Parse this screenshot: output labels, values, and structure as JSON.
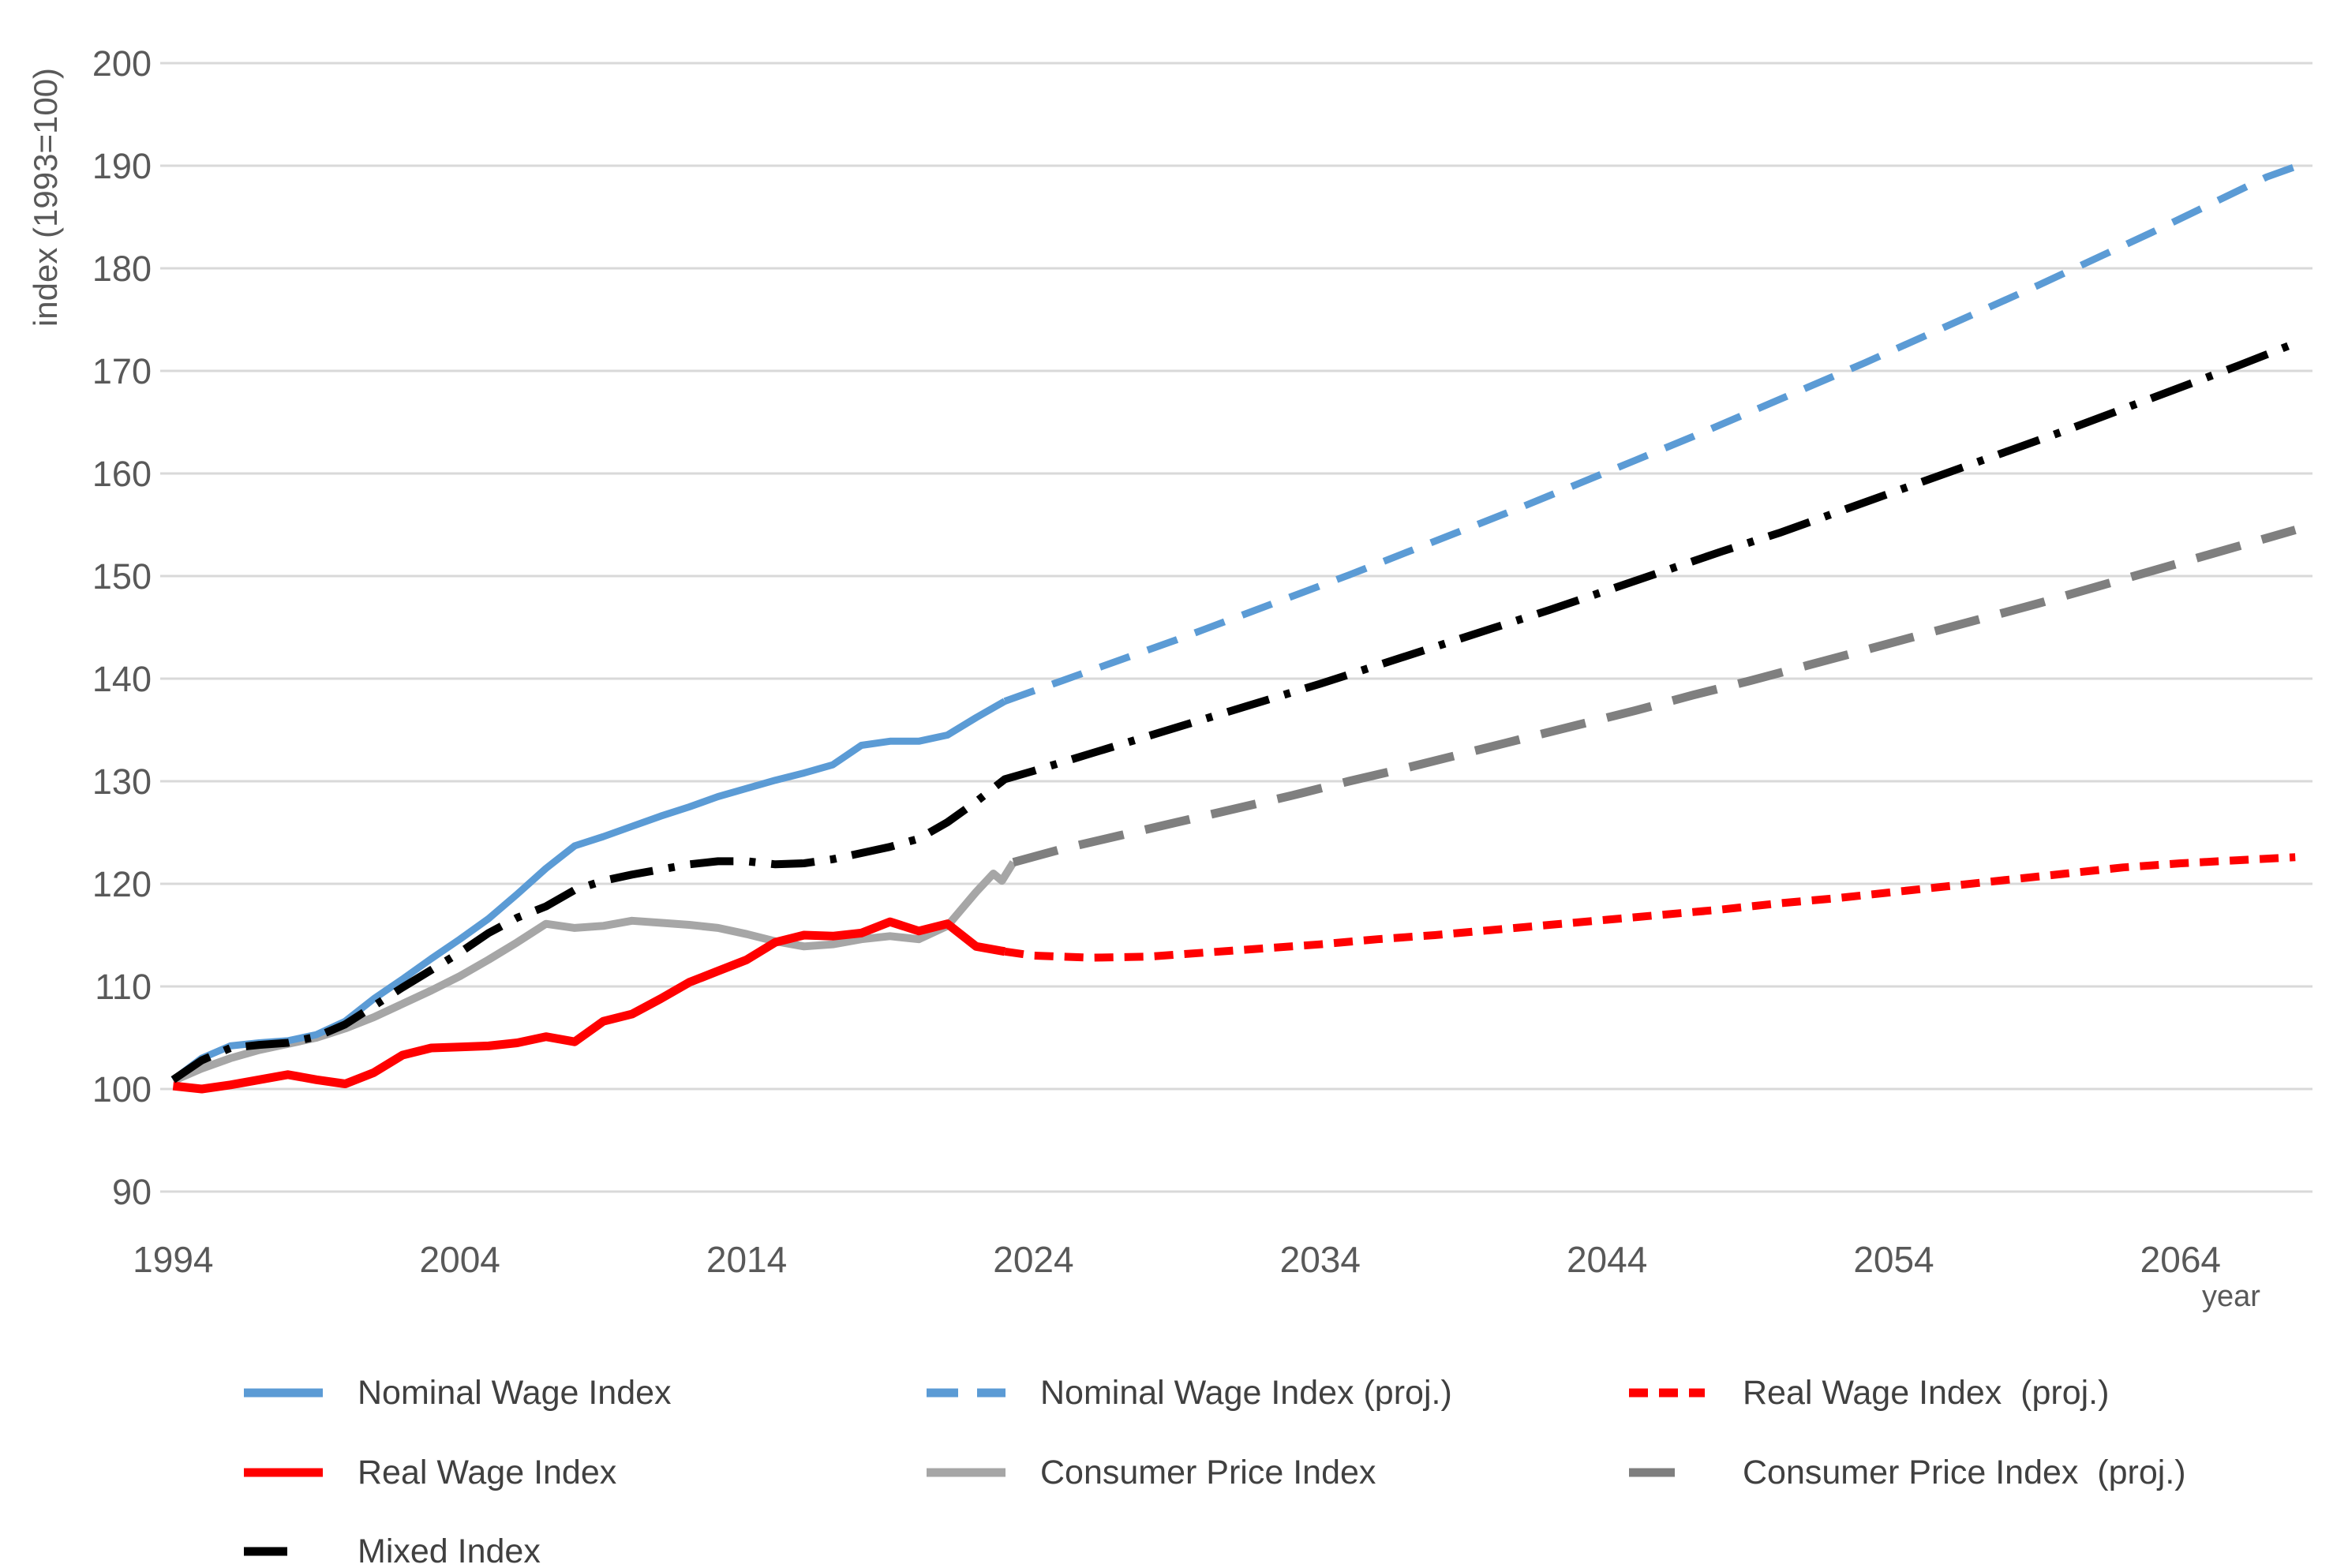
{
  "chart_data": {
    "type": "line",
    "title": "",
    "xlabel": "year",
    "ylabel": "index (1993=100)",
    "xlim": [
      1993.55,
      2068.6
    ],
    "ylim": [
      90,
      200
    ],
    "grid": "horizontal",
    "gridline_color": "#D9D9D9",
    "tick_color": "#595959",
    "legend_position": "bottom",
    "yticks": [
      90,
      100,
      110,
      120,
      130,
      140,
      150,
      160,
      170,
      180,
      190,
      200
    ],
    "xticks": [
      1994,
      2004,
      2014,
      2024,
      2034,
      2044,
      2054,
      2064
    ],
    "series": [
      {
        "name": "Nominal Wage Index",
        "color": "#5B9BD5",
        "dash": "solid",
        "width": 9,
        "x": [
          1994,
          1995,
          1996,
          1997,
          1998,
          1999,
          2000,
          2001,
          2002,
          2003,
          2004,
          2005,
          2006,
          2007,
          2008,
          2009,
          2010,
          2011,
          2012,
          2013,
          2014,
          2015,
          2016,
          2017,
          2018,
          2019,
          2020,
          2021,
          2022,
          2023
        ],
        "y": [
          100.9,
          103.0,
          104.2,
          104.5,
          104.7,
          105.3,
          106.6,
          108.8,
          110.7,
          112.7,
          114.6,
          116.6,
          119.0,
          121.5,
          123.7,
          124.6,
          125.6,
          126.6,
          127.5,
          128.5,
          129.3,
          130.1,
          130.8,
          131.6,
          133.5,
          133.9,
          133.9,
          134.5,
          136.2,
          137.8
        ]
      },
      {
        "name": "Nominal Wage Index (proj.)",
        "color": "#5B9BD5",
        "dash": "dash",
        "width": 9,
        "x": [
          2023,
          2025,
          2027,
          2029,
          2031,
          2033,
          2035,
          2037,
          2039,
          2041,
          2043,
          2045,
          2047,
          2049,
          2051,
          2053,
          2055,
          2057,
          2059,
          2061,
          2063,
          2065,
          2067,
          2068
        ],
        "y": [
          137.8,
          139.8,
          141.8,
          143.8,
          145.9,
          148.0,
          150.1,
          152.3,
          154.5,
          156.7,
          159.0,
          161.3,
          163.6,
          166.0,
          168.4,
          170.8,
          173.3,
          175.8,
          178.3,
          180.9,
          183.5,
          186.2,
          188.9,
          189.9
        ]
      },
      {
        "name": "Real Wage Index  (proj.)",
        "color": "#FF0000",
        "dash": "shortdash",
        "width": 10,
        "x": [
          2023,
          2024,
          2025,
          2026,
          2028,
          2030,
          2032,
          2034,
          2036,
          2038,
          2040,
          2042,
          2044,
          2046,
          2048,
          2050,
          2052,
          2054,
          2056,
          2058,
          2060,
          2062,
          2064,
          2066,
          2068
        ],
        "y": [
          113.4,
          113.0,
          112.9,
          112.8,
          112.9,
          113.3,
          113.7,
          114.1,
          114.6,
          115.0,
          115.5,
          116.0,
          116.5,
          117.0,
          117.5,
          118.1,
          118.6,
          119.2,
          119.8,
          120.4,
          121.0,
          121.6,
          122.0,
          122.3,
          122.6
        ]
      },
      {
        "name": "Real Wage Index",
        "color": "#FF0000",
        "dash": "solid",
        "width": 11,
        "x": [
          1994,
          1995,
          1996,
          1997,
          1998,
          1999,
          2000,
          2001,
          2002,
          2003,
          2004,
          2005,
          2006,
          2007,
          2008,
          2009,
          2010,
          2011,
          2012,
          2013,
          2014,
          2015,
          2016,
          2017,
          2018,
          2019,
          2020,
          2021,
          2022,
          2023
        ],
        "y": [
          100.3,
          100.0,
          100.4,
          100.9,
          101.4,
          100.9,
          100.5,
          101.6,
          103.3,
          104.0,
          104.1,
          104.2,
          104.5,
          105.1,
          104.6,
          106.6,
          107.3,
          108.8,
          110.4,
          111.5,
          112.6,
          114.3,
          115.0,
          114.9,
          115.2,
          116.3,
          115.4,
          116.1,
          113.9,
          113.4
        ]
      },
      {
        "name": "Consumer Price Index",
        "color": "#A6A6A6",
        "dash": "solid",
        "width": 10,
        "x": [
          1994,
          1995,
          1996,
          1997,
          1998,
          1999,
          2000,
          2001,
          2002,
          2003,
          2004,
          2005,
          2006,
          2007,
          2008,
          2009,
          2010,
          2011,
          2012,
          2013,
          2014,
          2015,
          2016,
          2017,
          2018,
          2019,
          2020,
          2021,
          2022,
          2022.6,
          2022.9,
          2023.3
        ],
        "y": [
          100.8,
          102.0,
          103.0,
          103.8,
          104.4,
          105.0,
          105.9,
          107.0,
          108.3,
          109.6,
          111.0,
          112.6,
          114.3,
          116.1,
          115.7,
          115.9,
          116.4,
          116.2,
          116.0,
          115.7,
          115.1,
          114.4,
          113.9,
          114.1,
          114.6,
          114.9,
          114.6,
          115.9,
          119.2,
          121.0,
          120.3,
          122.1
        ]
      },
      {
        "name": "Consumer Price Index  (proj.)",
        "color": "#7F7F7F",
        "dash": "longdash",
        "width": 11,
        "x": [
          2023.3,
          2025,
          2027,
          2029,
          2031,
          2033,
          2035,
          2037,
          2039,
          2041,
          2043,
          2045,
          2047,
          2049,
          2051,
          2053,
          2055,
          2057,
          2059,
          2061,
          2063,
          2065,
          2067,
          2068
        ],
        "y": [
          122.1,
          123.4,
          124.7,
          126.0,
          127.3,
          128.6,
          130.0,
          131.3,
          132.7,
          134.1,
          135.5,
          136.9,
          138.4,
          139.8,
          141.3,
          142.8,
          144.3,
          145.8,
          147.3,
          148.9,
          150.5,
          152.1,
          153.7,
          154.5
        ]
      },
      {
        "name": "Mixed Index",
        "color": "#000000",
        "dash": "dashdot",
        "width": 10,
        "x": [
          1994,
          1995,
          1996,
          1997,
          1998,
          1999,
          2000,
          2001,
          2002,
          2003,
          2004,
          2005,
          2006,
          2007,
          2008,
          2009,
          2010,
          2011,
          2012,
          2013,
          2014,
          2015,
          2016,
          2017,
          2018,
          2019,
          2020,
          2021,
          2022,
          2023,
          2024,
          2026,
          2028,
          2030,
          2032,
          2034,
          2036,
          2038,
          2040,
          2042,
          2044,
          2046,
          2048,
          2050,
          2052,
          2054,
          2056,
          2058,
          2060,
          2062,
          2064,
          2066,
          2068
        ],
        "y": [
          100.9,
          102.8,
          104.0,
          104.3,
          104.5,
          105.1,
          106.3,
          108.1,
          109.9,
          111.6,
          113.3,
          115.2,
          116.7,
          117.8,
          119.4,
          120.3,
          120.9,
          121.4,
          121.9,
          122.2,
          122.2,
          121.9,
          122.0,
          122.4,
          123.0,
          123.6,
          124.4,
          126.0,
          128.0,
          130.2,
          131.0,
          132.7,
          134.4,
          136.1,
          137.8,
          139.5,
          141.3,
          143.1,
          144.9,
          146.7,
          148.6,
          150.5,
          152.4,
          154.2,
          156.2,
          158.2,
          160.2,
          162.2,
          164.2,
          166.3,
          168.4,
          170.5,
          172.7
        ]
      }
    ],
    "legend": {
      "columns": [
        {
          "items": [
            {
              "label": "Nominal Wage Index",
              "series": 0
            },
            {
              "label": "Real Wage Index",
              "series": 3
            },
            {
              "label": "Mixed Index",
              "series": 6
            }
          ]
        },
        {
          "items": [
            {
              "label": "Nominal Wage Index (proj.)",
              "series": 1
            },
            {
              "label": "Consumer Price Index",
              "series": 4
            }
          ]
        },
        {
          "items": [
            {
              "label": "Real Wage Index  (proj.)",
              "series": 2
            },
            {
              "label": "Consumer Price Index  (proj.)",
              "series": 5
            }
          ]
        }
      ]
    }
  }
}
